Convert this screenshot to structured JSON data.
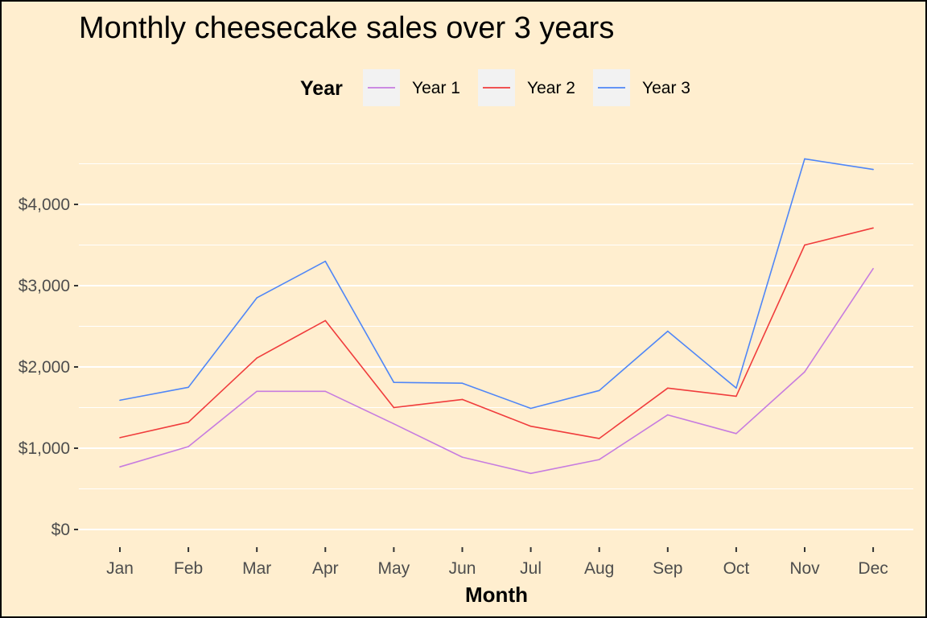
{
  "chart_data": {
    "type": "line",
    "title": "Monthly cheesecake sales over 3 years",
    "xlabel": "Month",
    "ylabel": "",
    "categories": [
      "Jan",
      "Feb",
      "Mar",
      "Apr",
      "May",
      "Jun",
      "Jul",
      "Aug",
      "Sep",
      "Oct",
      "Nov",
      "Dec"
    ],
    "ylim": [
      0,
      4600
    ],
    "yticks": [
      0,
      1000,
      2000,
      3000,
      4000
    ],
    "ytick_labels": [
      "$0",
      "$1,000",
      "$2,000",
      "$3,000",
      "$4,000"
    ],
    "yminor": [
      500,
      1500,
      2500,
      3500,
      4500
    ],
    "grid": true,
    "legend": {
      "title": "Year",
      "position": "top"
    },
    "background": "#ffeecf",
    "series": [
      {
        "name": "Year 1",
        "color": "#c77cdf",
        "values": [
          770,
          1020,
          1700,
          1700,
          1300,
          890,
          690,
          860,
          1410,
          1180,
          1940,
          3210
        ]
      },
      {
        "name": "Year 2",
        "color": "#f03c3c",
        "values": [
          1130,
          1320,
          2110,
          2570,
          1500,
          1600,
          1270,
          1120,
          1740,
          1640,
          3500,
          3710
        ]
      },
      {
        "name": "Year 3",
        "color": "#4f86f7",
        "values": [
          1590,
          1750,
          2850,
          3300,
          1810,
          1800,
          1490,
          1710,
          2440,
          1740,
          4560,
          4430
        ]
      }
    ]
  }
}
